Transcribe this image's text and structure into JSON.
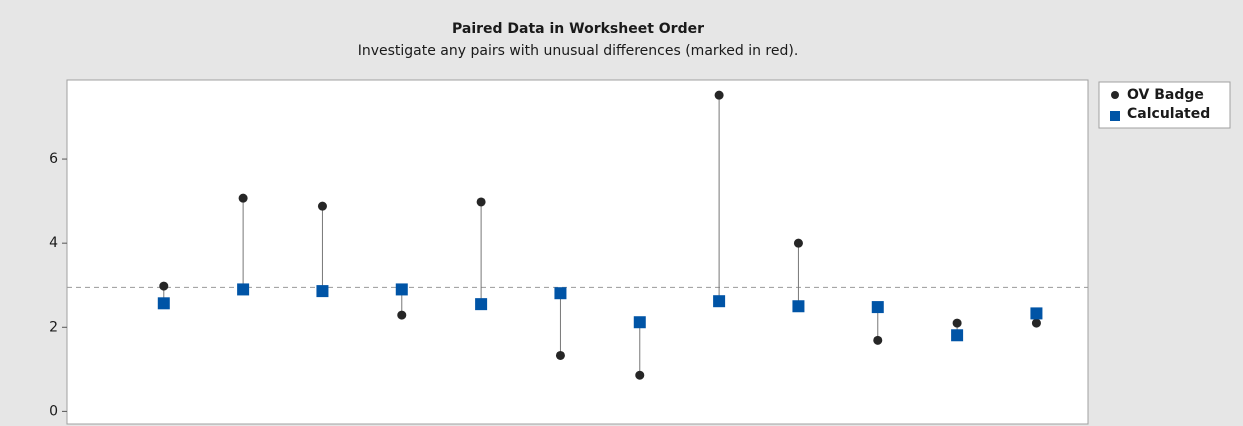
{
  "chart_data": {
    "type": "paired",
    "title": "Paired Data in Worksheet Order",
    "subtitle": "Investigate any pairs with unusual differences (marked in red).",
    "x": [
      1,
      2,
      3,
      4,
      5,
      6,
      7,
      8,
      9,
      10,
      11,
      12
    ],
    "xlim": [
      -0.22,
      12.65
    ],
    "ylim": [
      -0.3,
      7.88
    ],
    "yticks": [
      0,
      2,
      4,
      6
    ],
    "reference_line": 2.95,
    "series": [
      {
        "name": "OV Badge",
        "color": "#262626",
        "marker": "circle",
        "values": [
          2.98,
          5.07,
          4.88,
          2.29,
          4.98,
          1.33,
          0.86,
          7.52,
          4.0,
          1.69,
          2.1,
          2.1
        ]
      },
      {
        "name": "Calculated",
        "color": "#0054a6",
        "marker": "square",
        "values": [
          2.57,
          2.9,
          2.86,
          2.9,
          2.55,
          2.81,
          2.12,
          2.62,
          2.5,
          2.48,
          1.81,
          2.33
        ]
      }
    ]
  }
}
